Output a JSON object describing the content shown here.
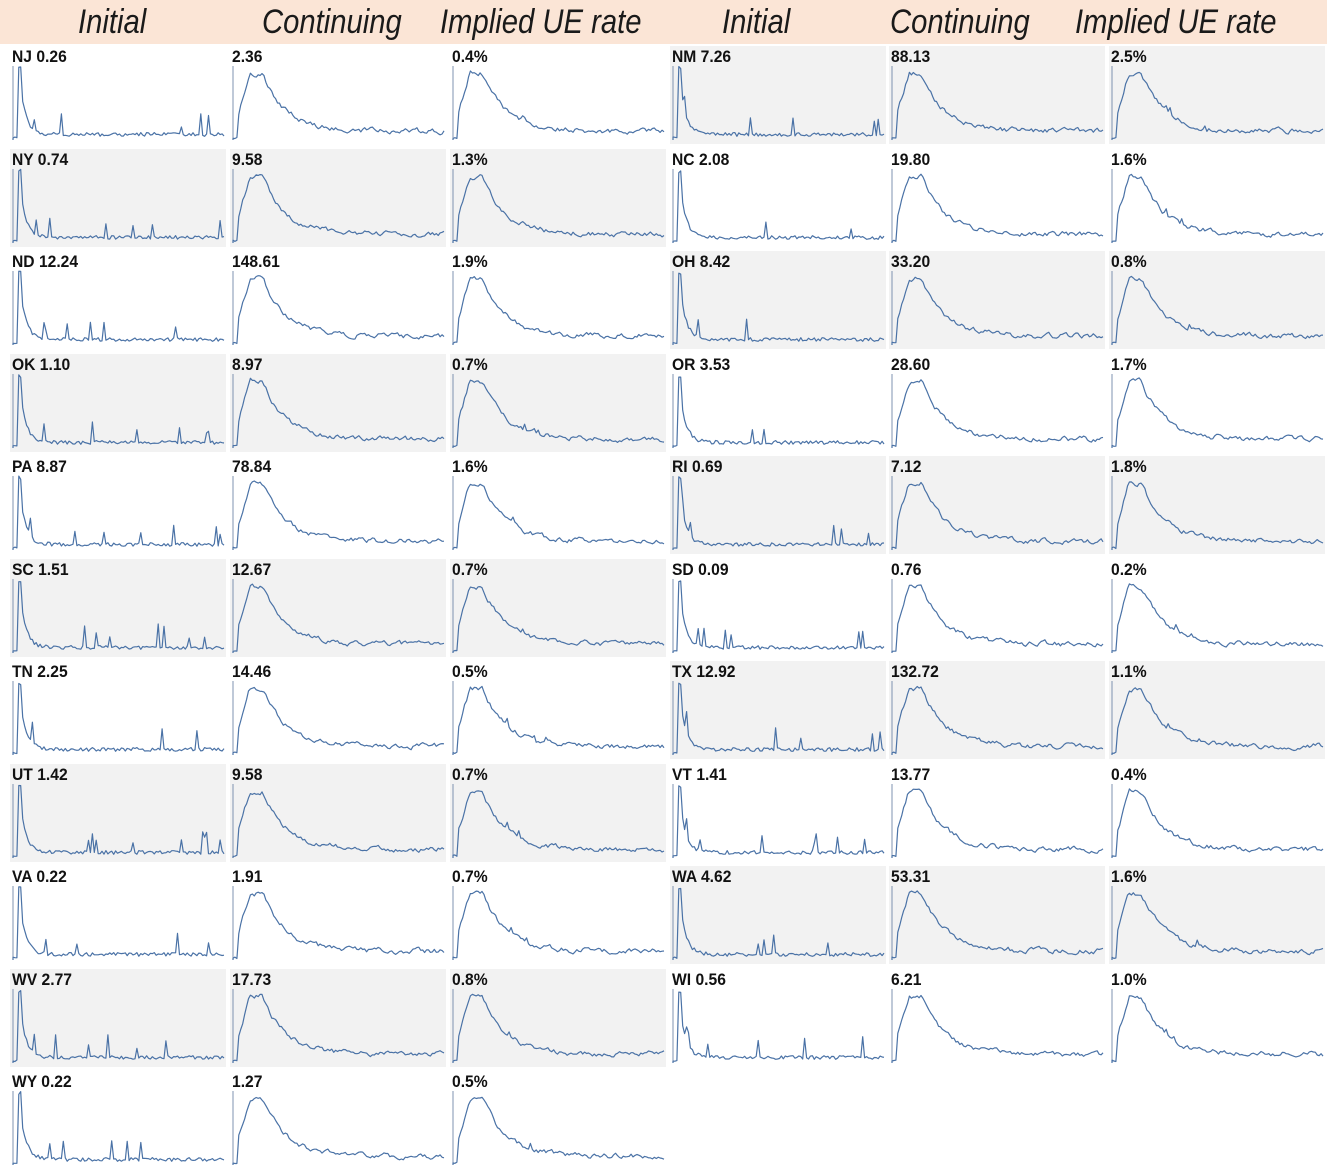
{
  "headers": [
    "Initial",
    "Continuing",
    "Implied UE rate",
    "Initial",
    "Continuing",
    "Implied UE rate"
  ],
  "colors": {
    "header_band": "#fbe5d6",
    "line": "#4a72a6",
    "shaded_cell": "#f2f2f2"
  },
  "chart_data": {
    "type": "line",
    "series_kinds": [
      "initial",
      "continuing",
      "implied-ue-rate"
    ],
    "rows": [
      {
        "state": "NJ",
        "initial": "0.26",
        "continuing": "2.36",
        "implied_ue_rate": "0.4%"
      },
      {
        "state": "NM",
        "initial": "7.26",
        "continuing": "88.13",
        "implied_ue_rate": "2.5%"
      },
      {
        "state": "NY",
        "initial": "0.74",
        "continuing": "9.58",
        "implied_ue_rate": "1.3%"
      },
      {
        "state": "NC",
        "initial": "2.08",
        "continuing": "19.80",
        "implied_ue_rate": "1.6%"
      },
      {
        "state": "ND",
        "initial": "12.24",
        "continuing": "148.61",
        "implied_ue_rate": "1.9%"
      },
      {
        "state": "OH",
        "initial": "8.42",
        "continuing": "33.20",
        "implied_ue_rate": "0.8%"
      },
      {
        "state": "OK",
        "initial": "1.10",
        "continuing": "8.97",
        "implied_ue_rate": "0.7%"
      },
      {
        "state": "OR",
        "initial": "3.53",
        "continuing": "28.60",
        "implied_ue_rate": "1.7%"
      },
      {
        "state": "PA",
        "initial": "8.87",
        "continuing": "78.84",
        "implied_ue_rate": "1.6%"
      },
      {
        "state": "RI",
        "initial": "0.69",
        "continuing": "7.12",
        "implied_ue_rate": "1.8%"
      },
      {
        "state": "SC",
        "initial": "1.51",
        "continuing": "12.67",
        "implied_ue_rate": "0.7%"
      },
      {
        "state": "SD",
        "initial": "0.09",
        "continuing": "0.76",
        "implied_ue_rate": "0.2%"
      },
      {
        "state": "TN",
        "initial": "2.25",
        "continuing": "14.46",
        "implied_ue_rate": "0.5%"
      },
      {
        "state": "TX",
        "initial": "12.92",
        "continuing": "132.72",
        "implied_ue_rate": "1.1%"
      },
      {
        "state": "UT",
        "initial": "1.42",
        "continuing": "9.58",
        "implied_ue_rate": "0.7%"
      },
      {
        "state": "VT",
        "initial": "1.41",
        "continuing": "13.77",
        "implied_ue_rate": "0.4%"
      },
      {
        "state": "VA",
        "initial": "0.22",
        "continuing": "1.91",
        "implied_ue_rate": "0.7%"
      },
      {
        "state": "WA",
        "initial": "4.62",
        "continuing": "53.31",
        "implied_ue_rate": "1.6%"
      },
      {
        "state": "WV",
        "initial": "2.77",
        "continuing": "17.73",
        "implied_ue_rate": "0.8%"
      },
      {
        "state": "WI",
        "initial": "0.56",
        "continuing": "6.21",
        "implied_ue_rate": "1.0%"
      },
      {
        "state": "WY",
        "initial": "0.22",
        "continuing": "1.27",
        "implied_ue_rate": "0.5%"
      }
    ]
  }
}
